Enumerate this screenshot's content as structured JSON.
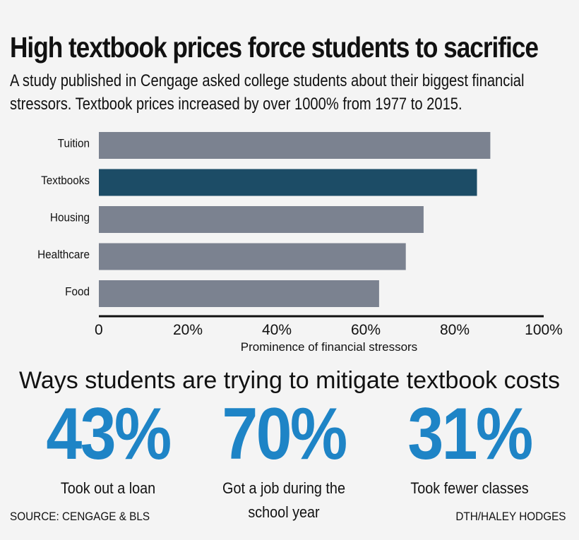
{
  "chart_data": {
    "type": "bar",
    "orientation": "horizontal",
    "title": "High textbook prices force students to sacrifice",
    "subtitle": "A study published in Cengage asked college students about their biggest financial stressors. Textbook prices increased by over 1000% from 1977 to 2015.",
    "categories": [
      "Tuition",
      "Textbooks",
      "Housing",
      "Healthcare",
      "Food"
    ],
    "values": [
      88,
      85,
      73,
      69,
      63
    ],
    "highlight": "Textbooks",
    "xlabel": "Prominence of financial stressors",
    "ylabel": "",
    "xlim": [
      0,
      100
    ],
    "xticks": [
      "0",
      "20%",
      "40%",
      "60%",
      "80%",
      "100%"
    ],
    "grid": false,
    "legend": "none"
  },
  "colors": {
    "bar": "#7b8290",
    "highlight_bar": "#1c4c66",
    "stat_number": "#1e84c6",
    "axis": "#111111"
  },
  "section": {
    "title": "Ways students are trying to mitigate textbook costs",
    "stats": [
      {
        "value": "43%",
        "label": "Took out a loan"
      },
      {
        "value": "70%",
        "label": "Got a job during the school year"
      },
      {
        "value": "31%",
        "label": "Took fewer classes"
      }
    ]
  },
  "footer": {
    "source": "SOURCE: CENGAGE & BLS",
    "credit": "DTH/HALEY HODGES"
  }
}
